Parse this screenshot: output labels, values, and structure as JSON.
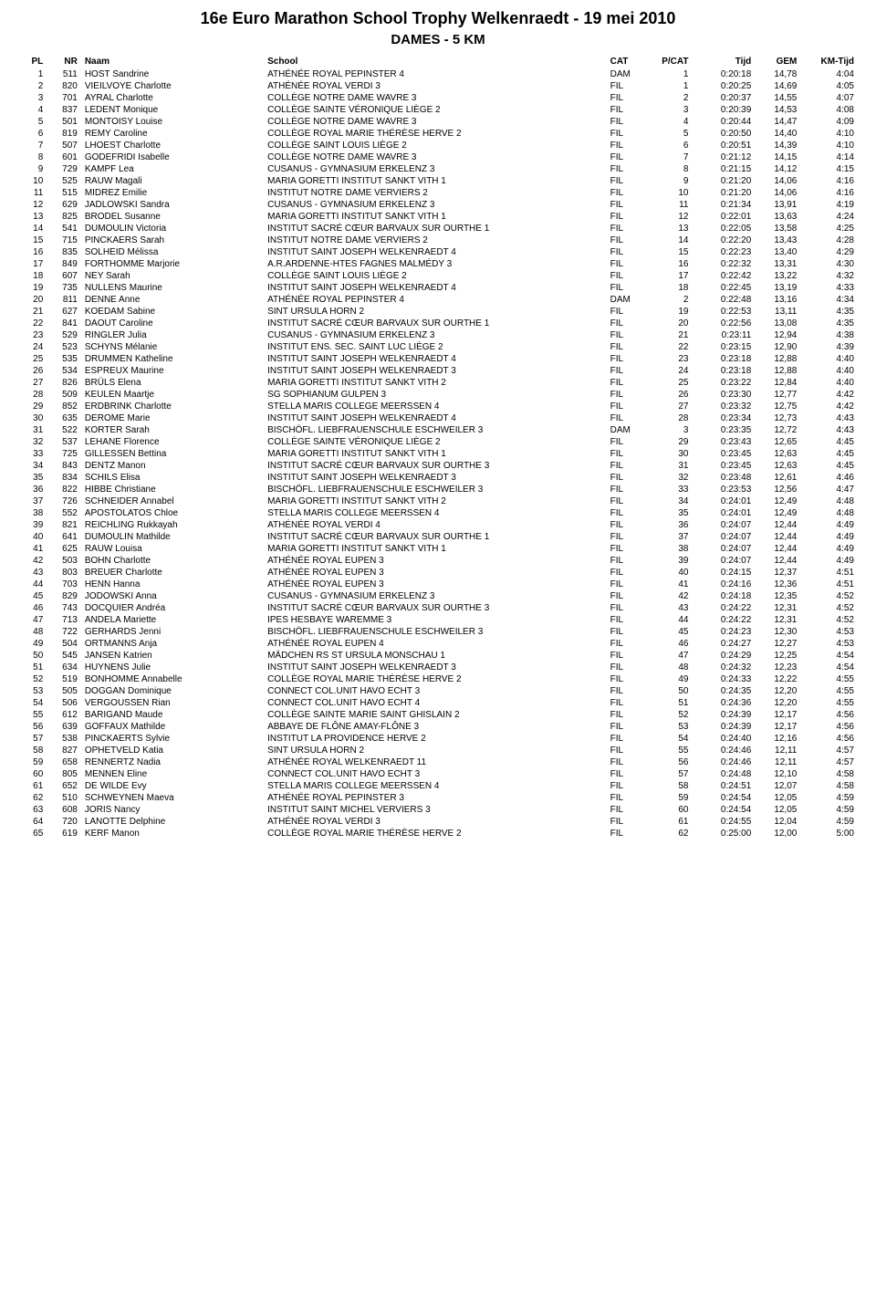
{
  "title": "16e Euro Marathon School Trophy Welkenraedt - 19 mei 2010",
  "subtitle": "DAMES - 5 KM",
  "columns": [
    "PL",
    "NR",
    "Naam",
    "School",
    "CAT",
    "P/CAT",
    "Tijd",
    "GEM",
    "KM-Tijd"
  ],
  "rows": [
    [
      "1",
      "511",
      "HOST Sandrine",
      "ATHÉNÉE ROYAL PEPINSTER 4",
      "DAM",
      "1",
      "0:20:18",
      "14,78",
      "4:04"
    ],
    [
      "2",
      "820",
      "VIEILVOYE Charlotte",
      "ATHÉNÉE ROYAL VERDI 3",
      "FIL",
      "1",
      "0:20:25",
      "14,69",
      "4:05"
    ],
    [
      "3",
      "701",
      "AYRAL Charlotte",
      "COLLÈGE NOTRE DAME WAVRE 3",
      "FIL",
      "2",
      "0:20:37",
      "14,55",
      "4:07"
    ],
    [
      "4",
      "837",
      "LEDENT Monique",
      "COLLÈGE SAINTE VÉRONIQUE LIÈGE 2",
      "FIL",
      "3",
      "0:20:39",
      "14,53",
      "4:08"
    ],
    [
      "5",
      "501",
      "MONTOISY Louise",
      "COLLÈGE NOTRE DAME WAVRE 3",
      "FIL",
      "4",
      "0:20:44",
      "14,47",
      "4:09"
    ],
    [
      "6",
      "819",
      "REMY Caroline",
      "COLLÈGE ROYAL MARIE THÉRÈSE HERVE 2",
      "FIL",
      "5",
      "0:20:50",
      "14,40",
      "4:10"
    ],
    [
      "7",
      "507",
      "LHOEST Charlotte",
      "COLLÈGE SAINT LOUIS LIÈGE 2",
      "FIL",
      "6",
      "0:20:51",
      "14,39",
      "4:10"
    ],
    [
      "8",
      "601",
      "GODEFRIDI Isabelle",
      "COLLÈGE NOTRE DAME WAVRE 3",
      "FIL",
      "7",
      "0:21:12",
      "14,15",
      "4:14"
    ],
    [
      "9",
      "729",
      "KAMPF Lea",
      "CUSANUS - GYMNASIUM ERKELENZ 3",
      "FIL",
      "8",
      "0:21:15",
      "14,12",
      "4:15"
    ],
    [
      "10",
      "525",
      "RAUW Magali",
      "MARIA GORETTI INSTITUT SANKT VITH 1",
      "FIL",
      "9",
      "0:21:20",
      "14,06",
      "4:16"
    ],
    [
      "11",
      "515",
      "MIDREZ Emilie",
      "INSTITUT NOTRE DAME VERVIERS 2",
      "FIL",
      "10",
      "0:21:20",
      "14,06",
      "4:16"
    ],
    [
      "12",
      "629",
      "JADLOWSKI Sandra",
      "CUSANUS - GYMNASIUM ERKELENZ 3",
      "FIL",
      "11",
      "0:21:34",
      "13,91",
      "4:19"
    ],
    [
      "13",
      "825",
      "BRODEL Susanne",
      "MARIA GORETTI INSTITUT SANKT VITH 1",
      "FIL",
      "12",
      "0:22:01",
      "13,63",
      "4:24"
    ],
    [
      "14",
      "541",
      "DUMOULIN Victoria",
      "INSTITUT SACRÉ CŒUR BARVAUX SUR OURTHE 1",
      "FIL",
      "13",
      "0:22:05",
      "13,58",
      "4:25"
    ],
    [
      "15",
      "715",
      "PINCKAERS Sarah",
      "INSTITUT NOTRE DAME VERVIERS 2",
      "FIL",
      "14",
      "0:22:20",
      "13,43",
      "4:28"
    ],
    [
      "16",
      "835",
      "SOLHEID Mélissa",
      "INSTITUT SAINT JOSEPH WELKENRAEDT 4",
      "FIL",
      "15",
      "0:22:23",
      "13,40",
      "4:29"
    ],
    [
      "17",
      "849",
      "FORTHOMME Marjorie",
      "A.R.ARDENNE-HTES FAGNES MALMÉDY 3",
      "FIL",
      "16",
      "0:22:32",
      "13,31",
      "4:30"
    ],
    [
      "18",
      "607",
      "NEY Sarah",
      "COLLÈGE SAINT LOUIS LIÈGE 2",
      "FIL",
      "17",
      "0:22:42",
      "13,22",
      "4:32"
    ],
    [
      "19",
      "735",
      "NULLENS Maurine",
      "INSTITUT SAINT JOSEPH WELKENRAEDT 4",
      "FIL",
      "18",
      "0:22:45",
      "13,19",
      "4:33"
    ],
    [
      "20",
      "811",
      "DENNE Anne",
      "ATHÉNÉE ROYAL PEPINSTER 4",
      "DAM",
      "2",
      "0:22:48",
      "13,16",
      "4:34"
    ],
    [
      "21",
      "627",
      "KOEDAM Sabine",
      "SINT URSULA HORN 2",
      "FIL",
      "19",
      "0:22:53",
      "13,11",
      "4:35"
    ],
    [
      "22",
      "841",
      "DAOUT Caroline",
      "INSTITUT SACRÉ CŒUR BARVAUX SUR OURTHE 1",
      "FIL",
      "20",
      "0:22:56",
      "13,08",
      "4:35"
    ],
    [
      "23",
      "529",
      "RINGLER Julia",
      "CUSANUS - GYMNASIUM ERKELENZ 3",
      "FIL",
      "21",
      "0:23:11",
      "12,94",
      "4:38"
    ],
    [
      "24",
      "523",
      "SCHYNS Mélanie",
      "INSTITUT ENS. SEC. SAINT LUC LIÈGE 2",
      "FIL",
      "22",
      "0:23:15",
      "12,90",
      "4:39"
    ],
    [
      "25",
      "535",
      "DRUMMEN Katheline",
      "INSTITUT SAINT JOSEPH WELKENRAEDT 4",
      "FIL",
      "23",
      "0:23:18",
      "12,88",
      "4:40"
    ],
    [
      "26",
      "534",
      "ESPREUX Maurine",
      "INSTITUT SAINT JOSEPH WELKENRAEDT 3",
      "FIL",
      "24",
      "0:23:18",
      "12,88",
      "4:40"
    ],
    [
      "27",
      "826",
      "BRÜLS Elena",
      "MARIA GORETTI INSTITUT SANKT VITH 2",
      "FIL",
      "25",
      "0:23:22",
      "12,84",
      "4:40"
    ],
    [
      "28",
      "509",
      "KEULEN Maartje",
      "SG SOPHIANUM GULPEN 3",
      "FIL",
      "26",
      "0:23:30",
      "12,77",
      "4:42"
    ],
    [
      "29",
      "852",
      "ERDBRINK Charlotte",
      "STELLA MARIS COLLEGE MEERSSEN 4",
      "FIL",
      "27",
      "0:23:32",
      "12,75",
      "4:42"
    ],
    [
      "30",
      "635",
      "DEROME Marie",
      "INSTITUT SAINT JOSEPH WELKENRAEDT 4",
      "FIL",
      "28",
      "0:23:34",
      "12,73",
      "4:43"
    ],
    [
      "31",
      "522",
      "KORTER Sarah",
      "BISCHÖFL. LIEBFRAUENSCHULE ESCHWEILER 3",
      "DAM",
      "3",
      "0:23:35",
      "12,72",
      "4:43"
    ],
    [
      "32",
      "537",
      "LEHANE Florence",
      "COLLÈGE SAINTE VÉRONIQUE LIÈGE 2",
      "FIL",
      "29",
      "0:23:43",
      "12,65",
      "4:45"
    ],
    [
      "33",
      "725",
      "GILLESSEN Bettina",
      "MARIA GORETTI INSTITUT SANKT VITH 1",
      "FIL",
      "30",
      "0:23:45",
      "12,63",
      "4:45"
    ],
    [
      "34",
      "843",
      "DENTZ Manon",
      "INSTITUT SACRÉ CŒUR BARVAUX SUR OURTHE 3",
      "FIL",
      "31",
      "0:23:45",
      "12,63",
      "4:45"
    ],
    [
      "35",
      "834",
      "SCHILS Elisa",
      "INSTITUT SAINT JOSEPH WELKENRAEDT 3",
      "FIL",
      "32",
      "0:23:48",
      "12,61",
      "4:46"
    ],
    [
      "36",
      "822",
      "HIBBE Christiane",
      "BISCHÖFL. LIEBFRAUENSCHULE ESCHWEILER 3",
      "FIL",
      "33",
      "0:23:53",
      "12,56",
      "4:47"
    ],
    [
      "37",
      "726",
      "SCHNEIDER Annabel",
      "MARIA GORETTI INSTITUT SANKT VITH 2",
      "FIL",
      "34",
      "0:24:01",
      "12,49",
      "4:48"
    ],
    [
      "38",
      "552",
      "APOSTOLATOS Chloe",
      "STELLA MARIS COLLEGE MEERSSEN 4",
      "FIL",
      "35",
      "0:24:01",
      "12,49",
      "4:48"
    ],
    [
      "39",
      "821",
      "REICHLING Rukkayah",
      "ATHÉNÉE ROYAL VERDI 4",
      "FIL",
      "36",
      "0:24:07",
      "12,44",
      "4:49"
    ],
    [
      "40",
      "641",
      "DUMOULIN Mathilde",
      "INSTITUT SACRÉ CŒUR BARVAUX SUR OURTHE 1",
      "FIL",
      "37",
      "0:24:07",
      "12,44",
      "4:49"
    ],
    [
      "41",
      "625",
      "RAUW Louisa",
      "MARIA GORETTI INSTITUT SANKT VITH 1",
      "FIL",
      "38",
      "0:24:07",
      "12,44",
      "4:49"
    ],
    [
      "42",
      "503",
      "BOHN Charlotte",
      "ATHÉNÉE ROYAL EUPEN 3",
      "FIL",
      "39",
      "0:24:07",
      "12,44",
      "4:49"
    ],
    [
      "43",
      "803",
      "BREUER Charlotte",
      "ATHÉNÉE ROYAL EUPEN 3",
      "FIL",
      "40",
      "0:24:15",
      "12,37",
      "4:51"
    ],
    [
      "44",
      "703",
      "HENN Hanna",
      "ATHÉNÉE ROYAL EUPEN 3",
      "FIL",
      "41",
      "0:24:16",
      "12,36",
      "4:51"
    ],
    [
      "45",
      "829",
      "JODOWSKI Anna",
      "CUSANUS - GYMNASIUM ERKELENZ 3",
      "FIL",
      "42",
      "0:24:18",
      "12,35",
      "4:52"
    ],
    [
      "46",
      "743",
      "DOCQUIER Andréa",
      "INSTITUT SACRÉ CŒUR BARVAUX SUR OURTHE 3",
      "FIL",
      "43",
      "0:24:22",
      "12,31",
      "4:52"
    ],
    [
      "47",
      "713",
      "ANDELA Mariette",
      "IPES HESBAYE WAREMME 3",
      "FIL",
      "44",
      "0:24:22",
      "12,31",
      "4:52"
    ],
    [
      "48",
      "722",
      "GERHARDS Jenni",
      "BISCHÖFL. LIEBFRAUENSCHULE ESCHWEILER 3",
      "FIL",
      "45",
      "0:24:23",
      "12,30",
      "4:53"
    ],
    [
      "49",
      "504",
      "ORTMANNS Anja",
      "ATHÉNÉE ROYAL EUPEN 4",
      "FIL",
      "46",
      "0:24:27",
      "12,27",
      "4:53"
    ],
    [
      "50",
      "545",
      "JANSEN Katrien",
      "MÄDCHEN RS ST URSULA MONSCHAU 1",
      "FIL",
      "47",
      "0:24:29",
      "12,25",
      "4:54"
    ],
    [
      "51",
      "634",
      "HUYNENS Julie",
      "INSTITUT SAINT JOSEPH WELKENRAEDT 3",
      "FIL",
      "48",
      "0:24:32",
      "12,23",
      "4:54"
    ],
    [
      "52",
      "519",
      "BONHOMME Annabelle",
      "COLLÈGE ROYAL MARIE THÉRÈSE HERVE 2",
      "FIL",
      "49",
      "0:24:33",
      "12,22",
      "4:55"
    ],
    [
      "53",
      "505",
      "DOGGAN Dominique",
      "CONNECT COL.UNIT HAVO ECHT 3",
      "FIL",
      "50",
      "0:24:35",
      "12,20",
      "4:55"
    ],
    [
      "54",
      "506",
      "VERGOUSSEN Rian",
      "CONNECT COL.UNIT HAVO ECHT 4",
      "FIL",
      "51",
      "0:24:36",
      "12,20",
      "4:55"
    ],
    [
      "55",
      "612",
      "BARIGAND Maude",
      "COLLÈGE SAINTE MARIE SAINT GHISLAIN 2",
      "FIL",
      "52",
      "0:24:39",
      "12,17",
      "4:56"
    ],
    [
      "56",
      "639",
      "GOFFAUX Mathilde",
      "ABBAYE DE FLÔNE AMAY-FLÔNE 3",
      "FIL",
      "53",
      "0:24:39",
      "12,17",
      "4:56"
    ],
    [
      "57",
      "538",
      "PINCKAERTS Sylvie",
      "INSTITUT LA PROVIDENCE HERVE 2",
      "FIL",
      "54",
      "0:24:40",
      "12,16",
      "4:56"
    ],
    [
      "58",
      "827",
      "OPHETVELD Katia",
      "SINT URSULA HORN 2",
      "FIL",
      "55",
      "0:24:46",
      "12,11",
      "4:57"
    ],
    [
      "59",
      "658",
      "RENNERTZ Nadia",
      "ATHÉNÉE ROYAL WELKENRAEDT 11",
      "FIL",
      "56",
      "0:24:46",
      "12,11",
      "4:57"
    ],
    [
      "60",
      "805",
      "MENNEN Eline",
      "CONNECT COL.UNIT HAVO ECHT 3",
      "FIL",
      "57",
      "0:24:48",
      "12,10",
      "4:58"
    ],
    [
      "61",
      "652",
      "DE WILDE Evy",
      "STELLA MARIS COLLEGE MEERSSEN 4",
      "FIL",
      "58",
      "0:24:51",
      "12,07",
      "4:58"
    ],
    [
      "62",
      "510",
      "SCHWEYNEN Maeva",
      "ATHÉNÉE ROYAL PEPINSTER 3",
      "FIL",
      "59",
      "0:24:54",
      "12,05",
      "4:59"
    ],
    [
      "63",
      "608",
      "JORIS Nancy",
      "INSTITUT SAINT MICHEL VERVIERS 3",
      "FIL",
      "60",
      "0:24:54",
      "12,05",
      "4:59"
    ],
    [
      "64",
      "720",
      "LANOTTE Delphine",
      "ATHÉNÉE ROYAL VERDI 3",
      "FIL",
      "61",
      "0:24:55",
      "12,04",
      "4:59"
    ],
    [
      "65",
      "619",
      "KERF Manon",
      "COLLÈGE ROYAL MARIE THÉRÈSE HERVE 2",
      "FIL",
      "62",
      "0:25:00",
      "12,00",
      "5:00"
    ]
  ]
}
